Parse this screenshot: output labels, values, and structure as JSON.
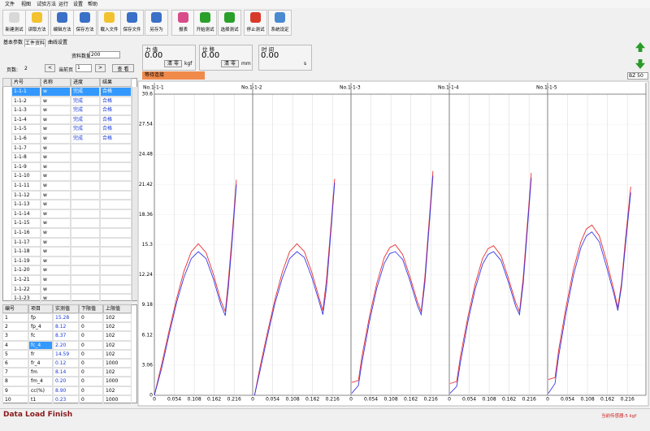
{
  "menu": [
    "文件",
    "视图",
    "试验方法",
    "运行",
    "设置",
    "帮助"
  ],
  "toolbar": [
    "新建测试",
    "读取方法",
    "编辑方法",
    "保存方法",
    "载入文件",
    "保存文件",
    "另存为",
    "报表",
    "开始测试",
    "选择测试",
    "停止测试",
    "系统设定"
  ],
  "tabs": [
    "基本参数",
    "工件资料",
    "曲线设置"
  ],
  "page_info": {
    "pages_label": "页数:",
    "pages": "2",
    "prev": "<",
    "current_label": "当前页",
    "current": "1",
    "next": ">",
    "view": "查 看",
    "count_label": "资料数量",
    "count": "200"
  },
  "list": {
    "headers": [
      "片号",
      "名称",
      "进度",
      "结果"
    ],
    "rows": [
      [
        "1-1-1",
        "w",
        "完成",
        "合格"
      ],
      [
        "1-1-2",
        "w",
        "完成",
        "合格"
      ],
      [
        "1-1-3",
        "w",
        "完成",
        "合格"
      ],
      [
        "1-1-4",
        "w",
        "完成",
        "合格"
      ],
      [
        "1-1-5",
        "w",
        "完成",
        "合格"
      ],
      [
        "1-1-6",
        "w",
        "完成",
        "合格"
      ],
      [
        "1-1-7",
        "w",
        null,
        null
      ],
      [
        "1-1-8",
        "w",
        null,
        null
      ],
      [
        "1-1-9",
        "w",
        null,
        null
      ],
      [
        "1-1-10",
        "w",
        null,
        null
      ],
      [
        "1-1-11",
        "w",
        null,
        null
      ],
      [
        "1-1-12",
        "w",
        null,
        null
      ],
      [
        "1-1-13",
        "w",
        null,
        null
      ],
      [
        "1-1-14",
        "w",
        null,
        null
      ],
      [
        "1-1-15",
        "w",
        null,
        null
      ],
      [
        "1-1-16",
        "w",
        null,
        null
      ],
      [
        "1-1-17",
        "w",
        null,
        null
      ],
      [
        "1-1-18",
        "w",
        null,
        null
      ],
      [
        "1-1-19",
        "w",
        null,
        null
      ],
      [
        "1-1-20",
        "w",
        null,
        null
      ],
      [
        "1-1-21",
        "w",
        null,
        null
      ],
      [
        "1-1-22",
        "w",
        null,
        null
      ],
      [
        "1-1-23",
        "w",
        null,
        null
      ]
    ]
  },
  "results": {
    "headers": [
      "编号",
      "项目",
      "实测值",
      "下限值",
      "上限值"
    ],
    "rows": [
      [
        "1",
        "fp",
        "15.28",
        "0",
        "102"
      ],
      [
        "2",
        "fp_4",
        "8.12",
        "0",
        "102"
      ],
      [
        "3",
        "fc",
        "8.37",
        "0",
        "102"
      ],
      [
        "4",
        "fc_4",
        "2.20",
        "0",
        "102"
      ],
      [
        "5",
        "fr",
        "14.59",
        "0",
        "102"
      ],
      [
        "6",
        "fr_4",
        "0.12",
        "0",
        "1000"
      ],
      [
        "7",
        "fm",
        "8.14",
        "0",
        "102"
      ],
      [
        "8",
        "fm_4",
        "0.20",
        "0",
        "1000"
      ],
      [
        "9",
        "cc(%)",
        "8.90",
        "0",
        "102"
      ],
      [
        "10",
        "t1",
        "0.23",
        "0",
        "1000"
      ]
    ]
  },
  "gauges": [
    {
      "label": "力 值",
      "value": "0.00",
      "button": "清 零",
      "unit": "kgf"
    },
    {
      "label": "位 移",
      "value": "0.00",
      "button": "清 零",
      "unit": "mm"
    },
    {
      "label": "时 间",
      "value": "0.00",
      "unit": "s"
    }
  ],
  "status": "等待连接",
  "spin": "BZ 50",
  "chart_data": [
    {
      "type": "line",
      "title": "No.1-1-1",
      "x": [
        0,
        0.02,
        0.04,
        0.06,
        0.08,
        0.1,
        0.119,
        0.14,
        0.16,
        0.18,
        0.192,
        0.2,
        0.21,
        0.222
      ],
      "xlim": [
        0,
        0.264
      ],
      "xticks": [
        0,
        0.054,
        0.108,
        0.162,
        0.216
      ],
      "ylim": [
        0,
        30.6
      ],
      "yticks": [
        0,
        3.06,
        6.12,
        9.18,
        12.24,
        15.3,
        18.36,
        21.42,
        24.48,
        27.54,
        30.6
      ],
      "series": [
        {
          "color": "#e8302f",
          "values": [
            0,
            3.2,
            6.6,
            9.8,
            12.6,
            14.6,
            15.4,
            14.5,
            12.3,
            9.6,
            8.5,
            11.5,
            16.0,
            21.9
          ]
        },
        {
          "color": "#3a3ae8",
          "values": [
            0,
            2.8,
            6.2,
            9.4,
            12.0,
            13.9,
            14.6,
            13.9,
            11.8,
            9.2,
            8.1,
            10.8,
            15.4,
            21.4
          ]
        }
      ]
    },
    {
      "type": "line",
      "title": "No.1-1-2",
      "x": [
        0.005,
        0.02,
        0.04,
        0.06,
        0.08,
        0.1,
        0.12,
        0.14,
        0.16,
        0.18,
        0.19,
        0.2,
        0.21,
        0.222
      ],
      "xlim": [
        0,
        0.264
      ],
      "xticks": [
        0,
        0.054,
        0.108,
        0.162,
        0.216
      ],
      "ylim": [
        0,
        30.6
      ],
      "yticks": [
        0,
        3.06,
        6.12,
        9.18,
        12.24,
        15.3,
        18.36,
        21.42,
        24.48,
        27.54,
        30.6
      ],
      "series": [
        {
          "color": "#e8302f",
          "values": [
            0,
            2.9,
            6.4,
            9.7,
            12.5,
            14.6,
            15.4,
            14.6,
            12.5,
            9.9,
            8.6,
            11.8,
            16.4,
            22.0
          ]
        },
        {
          "color": "#3a3ae8",
          "values": [
            0,
            2.5,
            6.0,
            9.3,
            11.9,
            13.9,
            14.6,
            14.0,
            12.0,
            9.5,
            8.2,
            11.0,
            15.8,
            21.6
          ]
        }
      ]
    },
    {
      "type": "line",
      "title": "No.1-1-3",
      "x": [
        0.002,
        0.02,
        0.03,
        0.05,
        0.07,
        0.09,
        0.105,
        0.12,
        0.14,
        0.16,
        0.18,
        0.19,
        0.2,
        0.21,
        0.222
      ],
      "xlim": [
        0,
        0.264
      ],
      "xticks": [
        0,
        0.054,
        0.108,
        0.162,
        0.216
      ],
      "ylim": [
        0,
        30.6
      ],
      "yticks": [
        0,
        3.06,
        6.12,
        9.18,
        12.24,
        15.3,
        18.36,
        21.42,
        24.48,
        27.54,
        30.6
      ],
      "series": [
        {
          "color": "#e8302f",
          "values": [
            1.3,
            1.5,
            4.0,
            8.0,
            11.4,
            14.0,
            15.0,
            15.3,
            14.3,
            12.0,
            9.5,
            8.5,
            12.0,
            17.0,
            22.8
          ]
        },
        {
          "color": "#3a3ae8",
          "values": [
            0.2,
            1.0,
            3.4,
            7.5,
            10.9,
            13.4,
            14.4,
            14.6,
            13.8,
            11.6,
            9.1,
            8.2,
            11.4,
            16.4,
            22.3
          ]
        }
      ]
    },
    {
      "type": "line",
      "title": "No.1-1-4",
      "x": [
        0.002,
        0.02,
        0.03,
        0.05,
        0.07,
        0.09,
        0.105,
        0.12,
        0.14,
        0.16,
        0.18,
        0.19,
        0.2,
        0.21,
        0.222
      ],
      "xlim": [
        0,
        0.264
      ],
      "xticks": [
        0,
        0.054,
        0.108,
        0.162,
        0.216
      ],
      "ylim": [
        0,
        30.6
      ],
      "yticks": [
        0,
        3.06,
        6.12,
        9.18,
        12.24,
        15.3,
        18.36,
        21.42,
        24.48,
        27.54,
        30.6
      ],
      "series": [
        {
          "color": "#e8302f",
          "values": [
            1.2,
            1.4,
            3.9,
            7.9,
            11.3,
            13.9,
            14.9,
            15.2,
            14.2,
            11.9,
            9.4,
            8.5,
            11.9,
            16.8,
            22.6
          ]
        },
        {
          "color": "#3a3ae8",
          "values": [
            0.2,
            0.9,
            3.3,
            7.4,
            10.8,
            13.3,
            14.3,
            14.6,
            13.7,
            11.5,
            9.0,
            8.2,
            11.3,
            16.2,
            22.1
          ]
        }
      ]
    },
    {
      "type": "line",
      "title": "No.1-1-5",
      "x": [
        0.002,
        0.02,
        0.03,
        0.05,
        0.07,
        0.09,
        0.105,
        0.12,
        0.14,
        0.16,
        0.18,
        0.19,
        0.2,
        0.21,
        0.225
      ],
      "xlim": [
        0,
        0.264
      ],
      "xticks": [
        0,
        0.054,
        0.108,
        0.162,
        0.216
      ],
      "ylim": [
        0,
        30.6
      ],
      "yticks": [
        0,
        3.06,
        6.12,
        9.18,
        12.24,
        15.3,
        18.36,
        21.42,
        24.48,
        27.54,
        30.6
      ],
      "series": [
        {
          "color": "#e8302f",
          "values": [
            1.6,
            1.8,
            4.6,
            9.0,
            12.8,
            15.6,
            16.9,
            17.3,
            16.2,
            13.6,
            10.6,
            8.9,
            11.4,
            15.6,
            21.2
          ]
        },
        {
          "color": "#3a3ae8",
          "values": [
            0.2,
            1.2,
            4.0,
            8.4,
            12.2,
            15.0,
            16.2,
            16.6,
            15.6,
            13.0,
            10.2,
            8.6,
            11.0,
            15.0,
            20.6
          ]
        }
      ]
    }
  ],
  "footer": {
    "left": "Data Load Finish",
    "right": "当前传感器:5 kgf"
  }
}
